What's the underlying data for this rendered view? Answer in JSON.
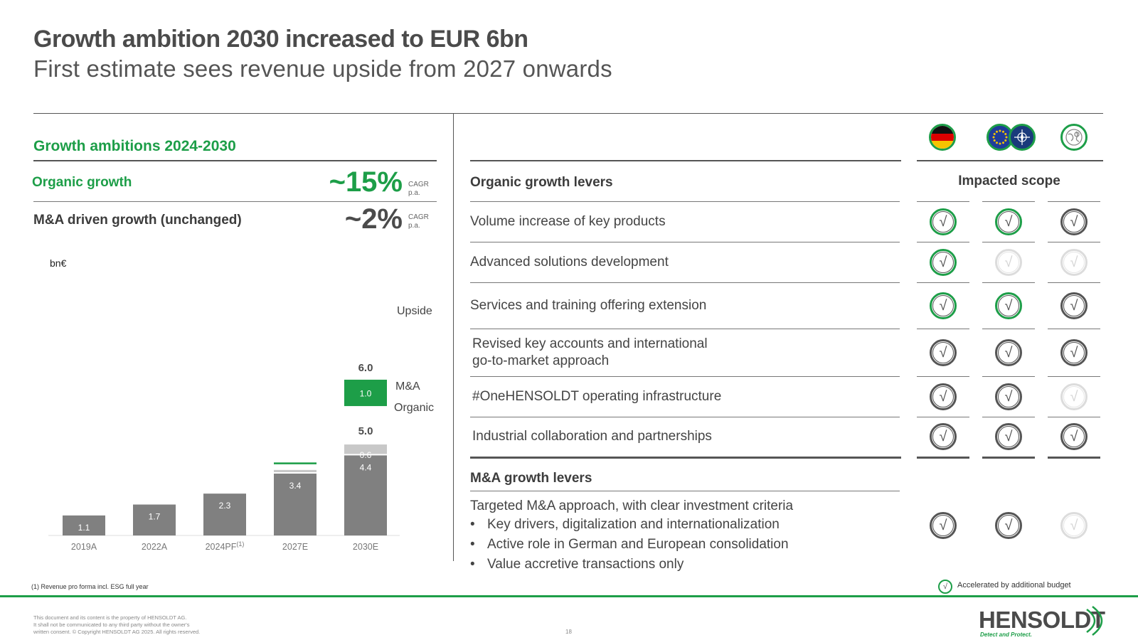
{
  "header": {
    "title": "Growth ambition 2030 increased to EUR 6bn",
    "subtitle": "First estimate sees revenue upside from 2027 onwards"
  },
  "left_panel": {
    "section_title": "Growth ambitions 2024-2030",
    "organic": {
      "label": "Organic growth",
      "value": "~15%",
      "cagr_line1": "CAGR",
      "cagr_line2": "p.a."
    },
    "ma": {
      "label": "M&A driven growth (unchanged)",
      "value": "~2%",
      "cagr_line1": "CAGR",
      "cagr_line2": "p.a."
    },
    "footnote": "(1) Revenue pro forma incl. ESG full year"
  },
  "chart_data": {
    "type": "bar",
    "stacked": true,
    "ylabel": "bn€",
    "categories": [
      "2019A",
      "2022A",
      "2024PF",
      "2027E",
      "2030E"
    ],
    "category_superscripts": [
      "",
      "",
      "(1)",
      "",
      ""
    ],
    "series": [
      {
        "name": "Organic",
        "color": "#808080",
        "values": [
          1.1,
          1.7,
          2.3,
          3.4,
          4.4
        ],
        "labels": [
          "1.1",
          "1.7",
          "2.3",
          "3.4",
          "4.4"
        ]
      },
      {
        "name": "M&A",
        "color": "#c8c8c8",
        "values": [
          0,
          0,
          0,
          0.2,
          0.6
        ],
        "labels": [
          "",
          "",
          "",
          "",
          "0.6"
        ]
      },
      {
        "name": "Upside",
        "color": "#1d9e48",
        "values": [
          0,
          0,
          0,
          0.1,
          1.0
        ],
        "labels": [
          "",
          "",
          "",
          "",
          "1.0"
        ]
      }
    ],
    "totals": {
      "2030E_base": "5.0",
      "2030E_with_upside": "6.0"
    },
    "ylim": [
      0,
      6.5
    ],
    "grid": false,
    "legend": "right"
  },
  "right_panel": {
    "organic_head": "Organic growth levers",
    "scope_head": "Impacted scope",
    "scope_icons": [
      "germany-flag",
      "eu-nato-flags",
      "globe"
    ],
    "levers": [
      {
        "lines": [
          "Volume increase of key products"
        ],
        "checks": [
          "green",
          "green",
          "dark"
        ]
      },
      {
        "lines": [
          "Advanced solutions development"
        ],
        "checks": [
          "green",
          "faint",
          "faint"
        ]
      },
      {
        "lines": [
          "Services and training offering extension"
        ],
        "checks": [
          "green",
          "green",
          "dark"
        ]
      },
      {
        "lines": [
          "Revised key accounts and international",
          "go-to-market approach"
        ],
        "checks": [
          "dark",
          "dark",
          "dark"
        ]
      },
      {
        "lines": [
          "#OneHENSOLDT operating infrastructure"
        ],
        "checks": [
          "dark",
          "dark",
          "faint"
        ]
      },
      {
        "lines": [
          "Industrial collaboration and partnerships"
        ],
        "checks": [
          "dark",
          "dark",
          "dark"
        ]
      }
    ],
    "ma_head": "M&A growth levers",
    "ma_intro": "Targeted M&A approach, with clear investment criteria",
    "ma_bullets": [
      "Key drivers, digitalization and internationalization",
      "Active role in German and European consolidation",
      "Value accretive transactions only"
    ],
    "ma_checks": [
      "dark",
      "dark",
      "faint"
    ],
    "legend_text": "Accelerated by additional budget"
  },
  "footer": {
    "legal_1": "This document and its content is the property of HENSOLDT AG.",
    "legal_2": "It shall not be communicated to any third party without the owner's",
    "legal_3": "written consent. © Copyright HENSOLDT AG 2025. All rights reserved.",
    "page": "18",
    "logo_word": "HENSOLDT",
    "logo_tagline": "Detect and Protect."
  },
  "colors": {
    "accent": "#1d9e48",
    "bar_dark": "#808080",
    "bar_light": "#c8c8c8",
    "text": "#3c3c3c"
  }
}
